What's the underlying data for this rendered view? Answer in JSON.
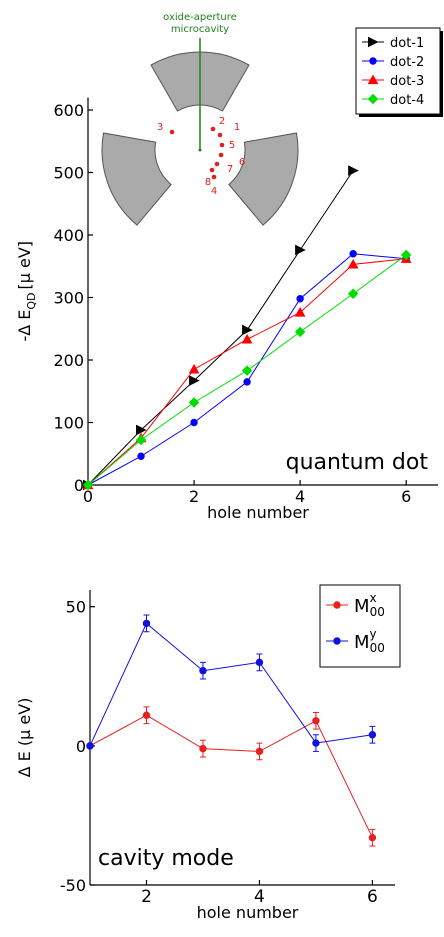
{
  "chart_data": [
    {
      "type": "line",
      "ylabel": "-Δ E",
      "ylabel_subscript": "QD",
      "ylabel_unit": "[μ eV]",
      "xlabel": "hole number",
      "annotation": "quantum dot",
      "inset": {
        "title": "oxide-aperture",
        "subtitle": "microcavity",
        "hole_labels": [
          "1",
          "2",
          "3",
          "4",
          "5",
          "6",
          "7",
          "8"
        ]
      },
      "x": [
        0,
        1,
        2,
        3,
        4,
        5,
        6
      ],
      "xlim": [
        0,
        6.6
      ],
      "xticks": [
        0,
        2,
        4,
        6
      ],
      "ylim": [
        0,
        620
      ],
      "yticks": [
        0,
        100,
        200,
        300,
        400,
        500,
        600
      ],
      "legend": "upper right",
      "series": [
        {
          "name": "dot-1",
          "color": "#000000",
          "marker": "triangle-right",
          "values": [
            0,
            88,
            167,
            248,
            376,
            503,
            null
          ]
        },
        {
          "name": "dot-2",
          "color": "#0000ff",
          "marker": "circle",
          "values": [
            0,
            46,
            100,
            165,
            298,
            370,
            362
          ]
        },
        {
          "name": "dot-3",
          "color": "#ff0000",
          "marker": "triangle-up",
          "values": [
            0,
            75,
            185,
            233,
            276,
            353,
            362
          ]
        },
        {
          "name": "dot-4",
          "color": "#00dd00",
          "marker": "diamond",
          "values": [
            0,
            72,
            132,
            183,
            245,
            306,
            368
          ]
        }
      ]
    },
    {
      "type": "errorline",
      "ylabel": "Δ E (μ eV)",
      "xlabel": "hole number",
      "annotation": "cavity mode",
      "x": [
        1,
        2,
        3,
        4,
        5,
        6
      ],
      "xlim": [
        1,
        6.4
      ],
      "xticks": [
        2,
        4,
        6
      ],
      "ylim": [
        -50,
        56
      ],
      "yticks": [
        -50,
        0,
        50
      ],
      "legend": "upper right",
      "series": [
        {
          "name": "M",
          "superscript": "x",
          "subscript": "00",
          "color": "#e82020",
          "values": [
            0,
            11,
            -1,
            -2,
            9,
            -33
          ],
          "errors": [
            0,
            3,
            3,
            3,
            3,
            3
          ]
        },
        {
          "name": "M",
          "superscript": "y",
          "subscript": "00",
          "color": "#1010e0",
          "values": [
            0,
            44,
            27,
            30,
            1,
            4
          ],
          "errors": [
            0,
            3,
            3,
            3,
            3,
            3
          ]
        }
      ]
    }
  ]
}
